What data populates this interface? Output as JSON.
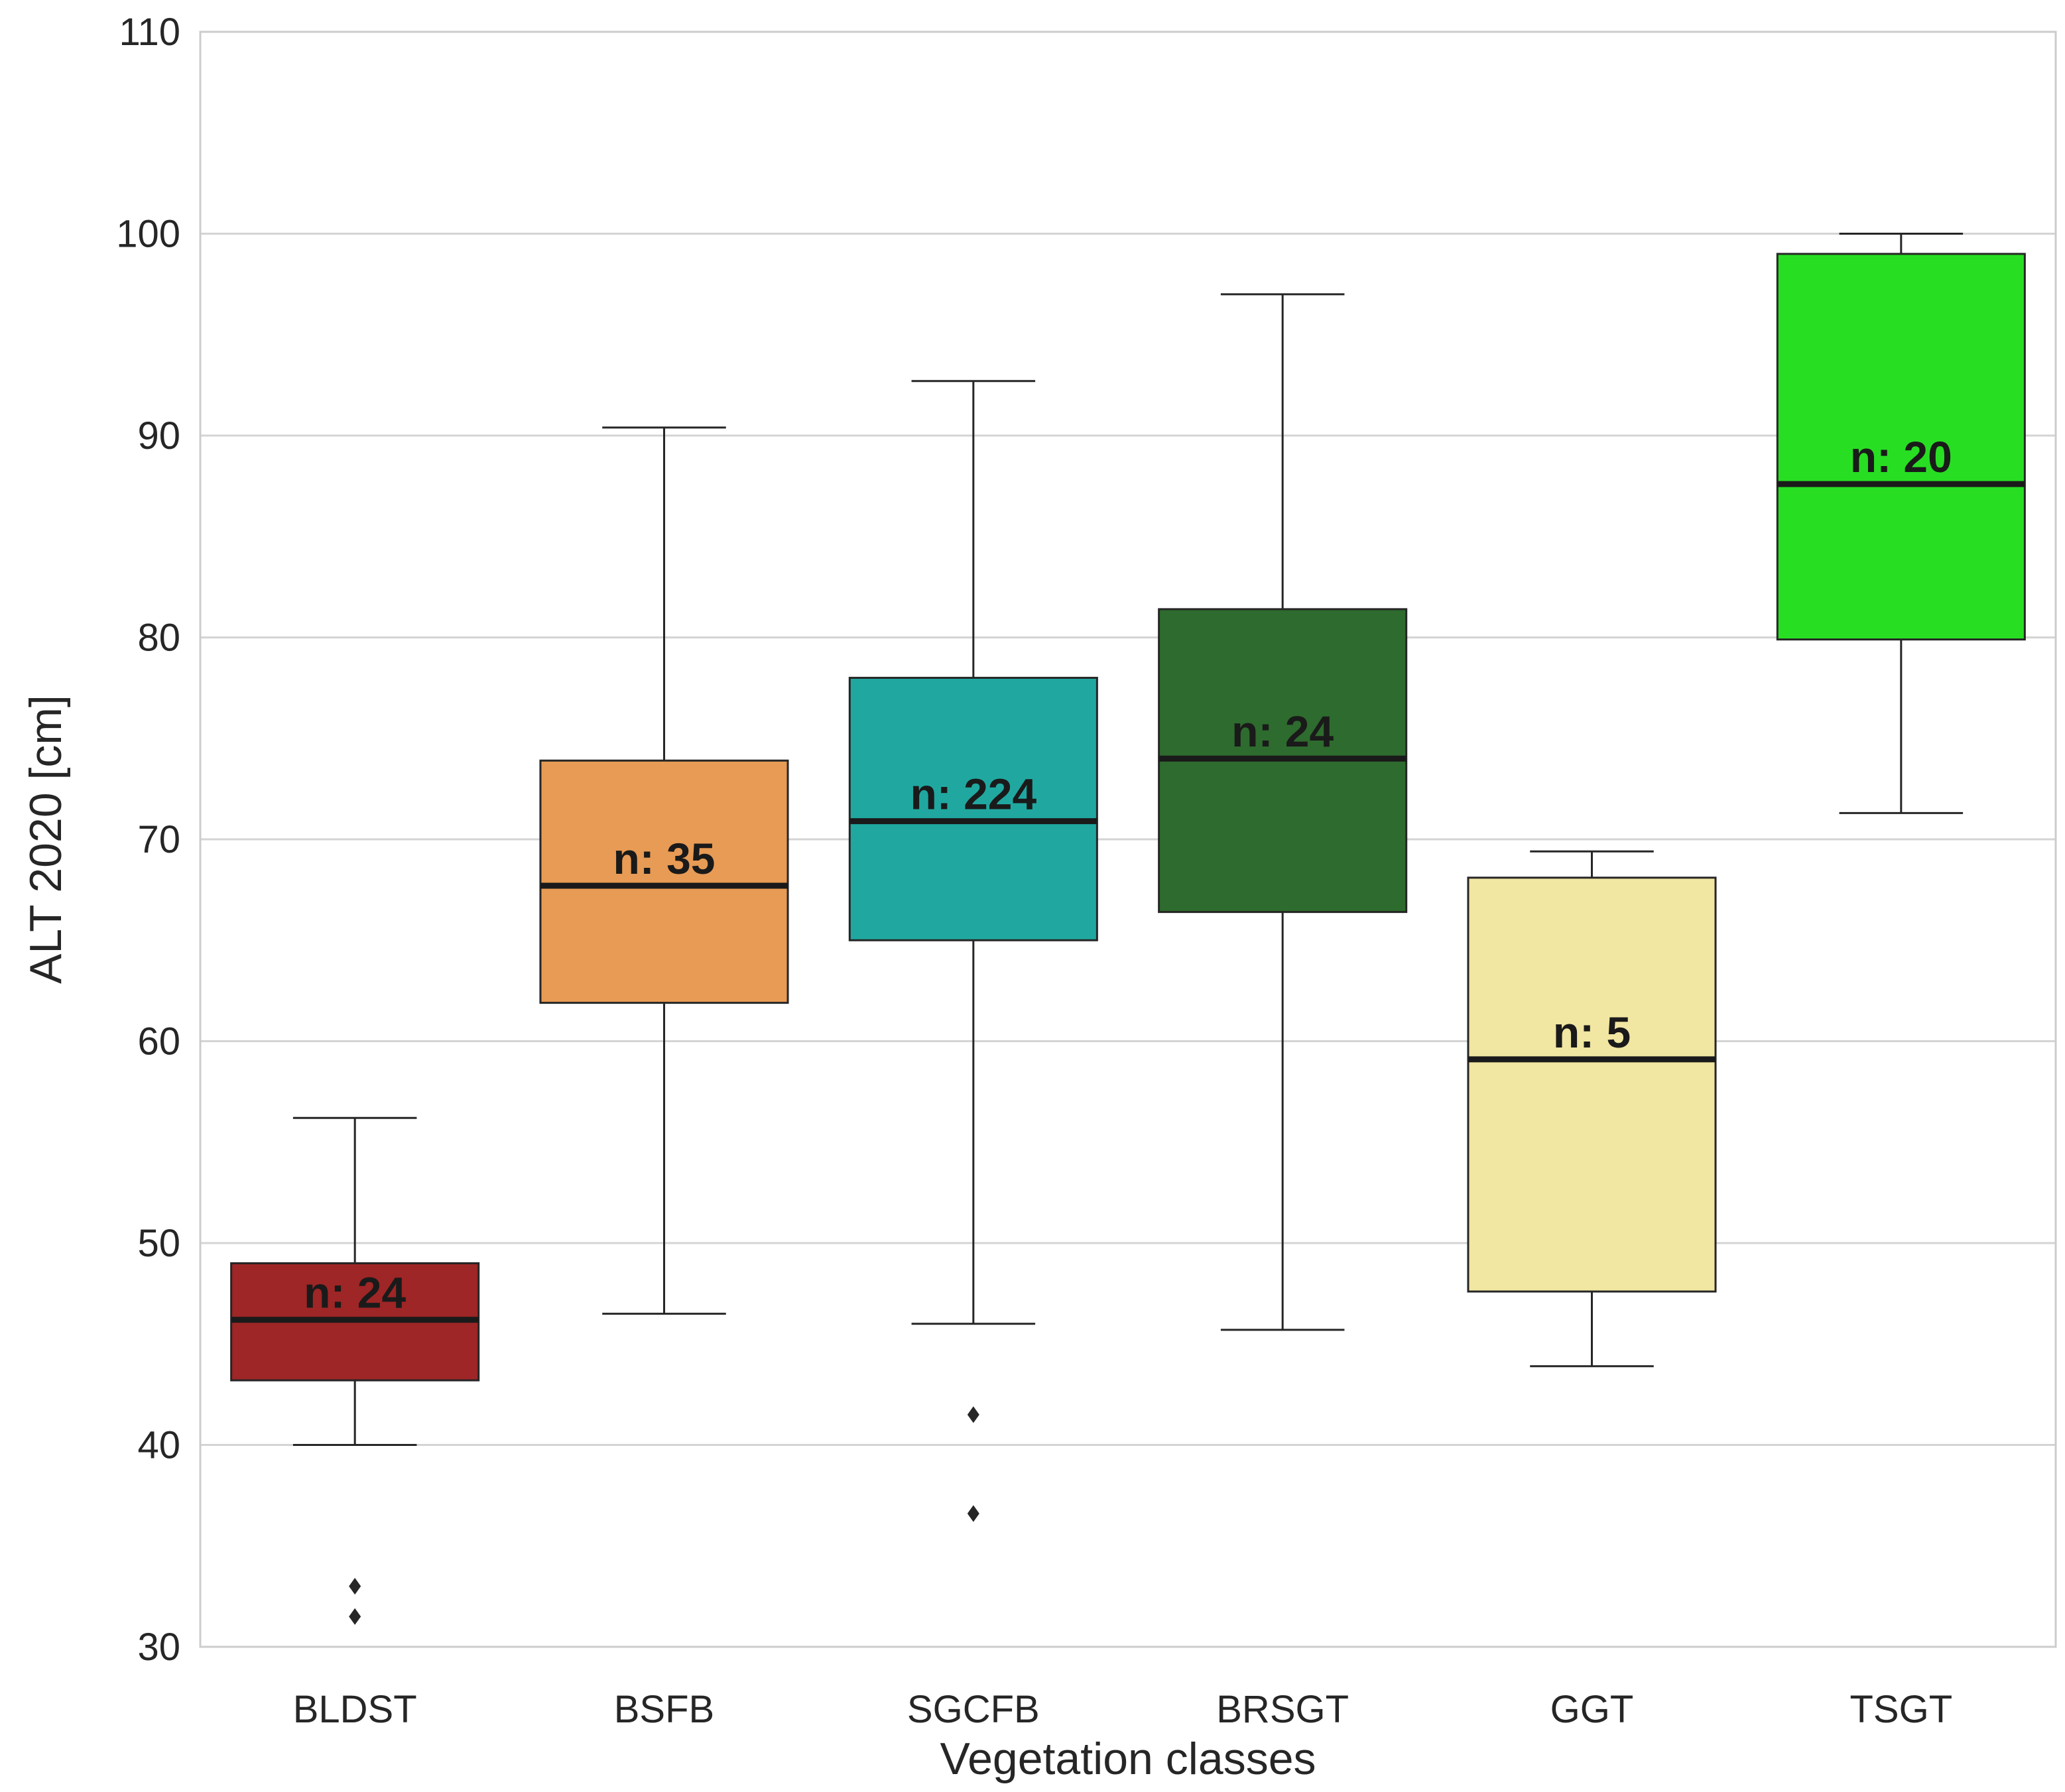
{
  "chart_data": {
    "type": "boxplot",
    "title": "",
    "xlabel": "Vegetation classes",
    "ylabel": "ALT 2020 [cm]",
    "ylim": [
      30,
      110
    ],
    "yticks": [
      30,
      40,
      50,
      60,
      70,
      80,
      90,
      100,
      110
    ],
    "grid": "horizontal",
    "categories": [
      "BLDST",
      "BSFB",
      "SGCFB",
      "BRSGT",
      "GGT",
      "TSGT"
    ],
    "boxes": [
      {
        "category": "BLDST",
        "color": "#9e2626",
        "whisker_low": 40.0,
        "q1": 43.2,
        "median": 46.2,
        "q3": 49.0,
        "whisker_high": 56.2,
        "outliers": [
          33.0,
          31.5
        ],
        "n_label": "n: 24"
      },
      {
        "category": "BSFB",
        "color": "#e89b54",
        "whisker_low": 46.5,
        "q1": 61.9,
        "median": 67.7,
        "q3": 73.9,
        "whisker_high": 90.4,
        "outliers": [],
        "n_label": "n: 35"
      },
      {
        "category": "SGCFB",
        "color": "#20a8a0",
        "whisker_low": 46.0,
        "q1": 65.0,
        "median": 70.9,
        "q3": 78.0,
        "whisker_high": 92.7,
        "outliers": [
          41.5,
          36.6
        ],
        "n_label": "n: 224"
      },
      {
        "category": "BRSGT",
        "color": "#2e6b2e",
        "whisker_low": 45.7,
        "q1": 66.4,
        "median": 74.0,
        "q3": 81.4,
        "whisker_high": 97.0,
        "outliers": [],
        "n_label": "n: 24"
      },
      {
        "category": "GGT",
        "color": "#f1e6a2",
        "whisker_low": 43.9,
        "q1": 47.6,
        "median": 59.1,
        "q3": 68.1,
        "whisker_high": 69.4,
        "outliers": [],
        "n_label": "n: 5"
      },
      {
        "category": "TSGT",
        "color": "#28de23",
        "whisker_low": 71.3,
        "q1": 79.9,
        "median": 87.6,
        "q3": 99.0,
        "whisker_high": 100.0,
        "outliers": [],
        "n_label": "n: 20"
      }
    ]
  }
}
